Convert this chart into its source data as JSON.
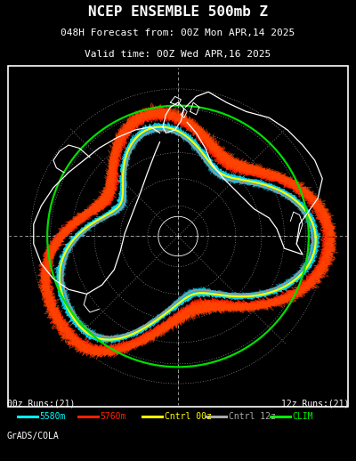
{
  "title_line1": "NCEP ENSEMBLE 500mb Z",
  "title_line2": "048H Forecast from: 00Z Mon APR,14 2025",
  "title_line3": "Valid time: 00Z Wed APR,16 2025",
  "background_color": "#000000",
  "text_color": "#ffffff",
  "legend_items": [
    {
      "label": "5580m",
      "color": "#00ffff"
    },
    {
      "label": "5760m",
      "color": "#ff2200"
    },
    {
      "label": "Cntrl 00z",
      "color": "#ffff00"
    },
    {
      "label": "Cntrl 12z",
      "color": "#aaaaaa"
    },
    {
      "label": "CLIM",
      "color": "#00ee00"
    }
  ],
  "footer_left": "00z Runs:(21)",
  "footer_right": "12z Runs:(21)",
  "credit": "GrADS/COLA"
}
